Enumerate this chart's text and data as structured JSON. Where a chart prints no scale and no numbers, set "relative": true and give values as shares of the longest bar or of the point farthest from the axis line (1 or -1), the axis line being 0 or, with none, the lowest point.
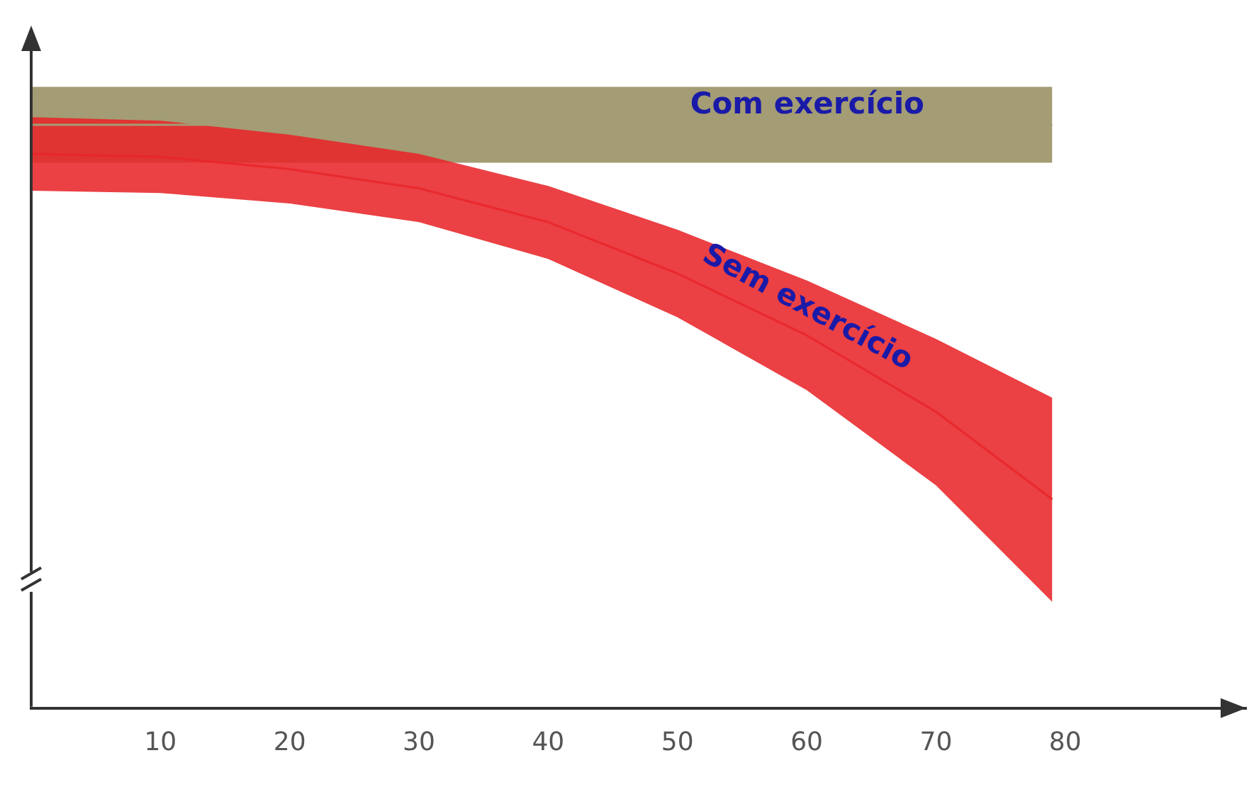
{
  "chart_data": {
    "type": "line",
    "relative": true,
    "xlim": [
      0,
      94
    ],
    "xticks": [
      10,
      20,
      30,
      40,
      50,
      60,
      70,
      80
    ],
    "series": [
      {
        "name": "Com exercício",
        "color": "#a39c74",
        "x": [
          0,
          79
        ],
        "values": [
          1,
          1
        ],
        "lower": [
          0.935,
          0.935
        ],
        "upper": [
          1.065,
          1.065
        ]
      },
      {
        "name": "Sem exercício",
        "color": "#e8262a",
        "x": [
          0,
          10,
          20,
          30,
          40,
          50,
          60,
          70,
          79
        ],
        "values": [
          0.95,
          0.945,
          0.924,
          0.891,
          0.833,
          0.745,
          0.639,
          0.508,
          0.358
        ],
        "lower": [
          0.887,
          0.883,
          0.865,
          0.833,
          0.77,
          0.67,
          0.545,
          0.382,
          0.182
        ],
        "upper": [
          1.013,
          1.007,
          0.983,
          0.95,
          0.895,
          0.82,
          0.733,
          0.633,
          0.532
        ]
      }
    ]
  }
}
